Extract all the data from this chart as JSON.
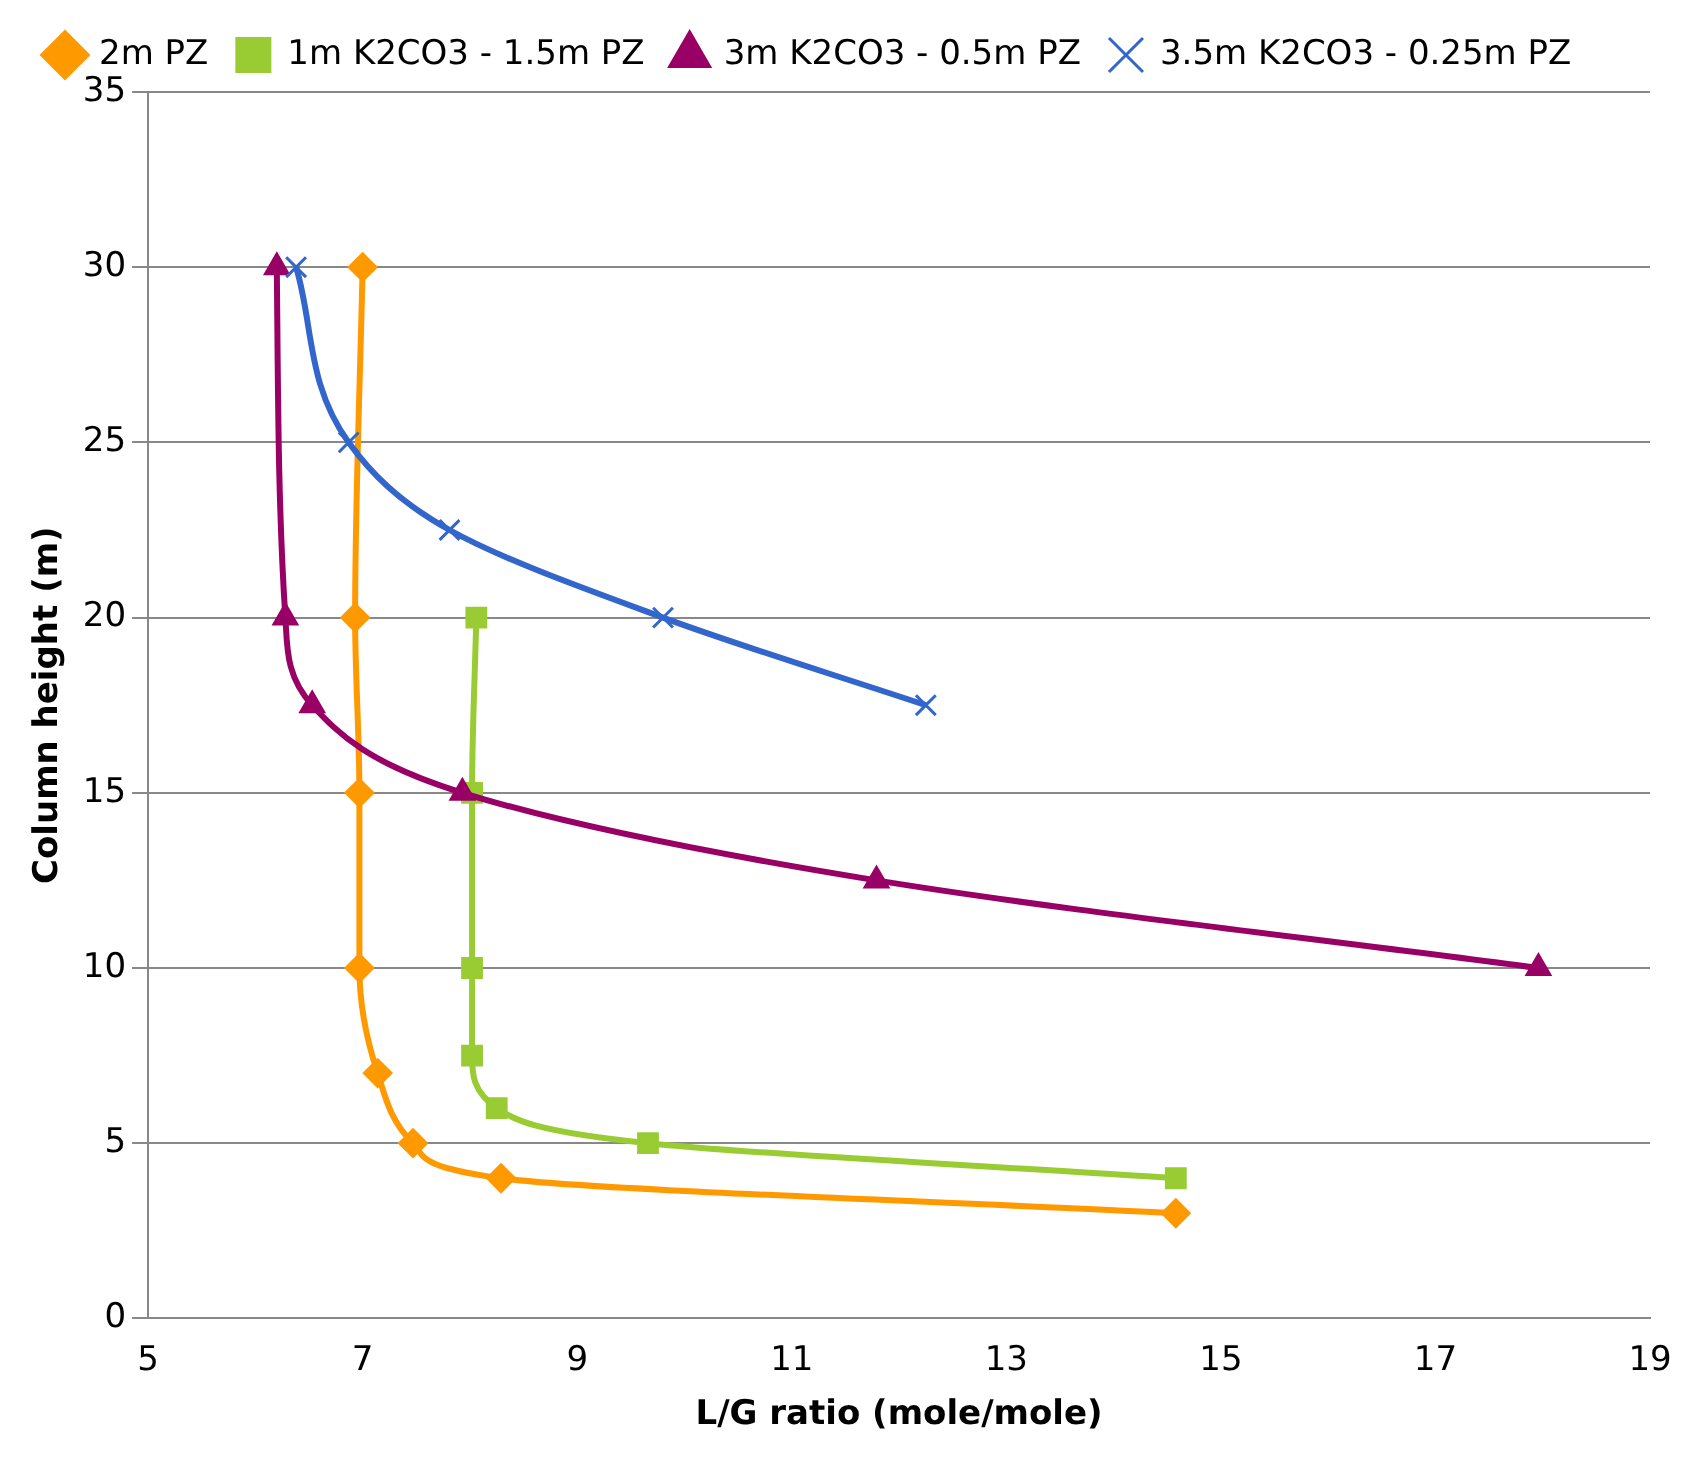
{
  "chart_data": {
    "type": "line",
    "xlabel": "L/G ratio (mole/mole)",
    "ylabel": "Column height (m)",
    "xlim": [
      5,
      19
    ],
    "xticks": [
      5,
      7,
      9,
      11,
      13,
      15,
      17,
      19
    ],
    "ylim": [
      0,
      35
    ],
    "yticks": [
      0,
      5,
      10,
      15,
      20,
      25,
      30,
      35
    ],
    "grid": "y",
    "legend": "top",
    "series": [
      {
        "name": "2m PZ",
        "color": "#ff9900",
        "marker": "diamond",
        "x": [
          7.0,
          6.93,
          6.97,
          6.97,
          7.14,
          7.47,
          8.29,
          14.58
        ],
        "values": [
          30,
          20,
          15,
          10,
          7,
          5,
          4,
          3
        ]
      },
      {
        "name": "1m K2CO3 - 1.5m PZ",
        "color": "#99cc33",
        "marker": "square",
        "x": [
          8.06,
          8.02,
          8.02,
          8.02,
          8.25,
          9.66,
          14.58
        ],
        "values": [
          20,
          15,
          10,
          7.5,
          6,
          5,
          4
        ]
      },
      {
        "name": "3m K2CO3 - 0.5m PZ",
        "color": "#990066",
        "marker": "triangle",
        "x": [
          6.2,
          6.28,
          6.53,
          7.93,
          11.79,
          17.96
        ],
        "values": [
          30,
          20,
          17.5,
          15,
          12.5,
          10
        ]
      },
      {
        "name": "3.5m K2CO3 - 0.25m PZ",
        "color": "#3366cc",
        "marker": "cross",
        "x": [
          6.38,
          6.87,
          7.81,
          9.8,
          12.25
        ],
        "values": [
          30,
          25,
          22.5,
          20,
          17.5
        ]
      }
    ]
  }
}
